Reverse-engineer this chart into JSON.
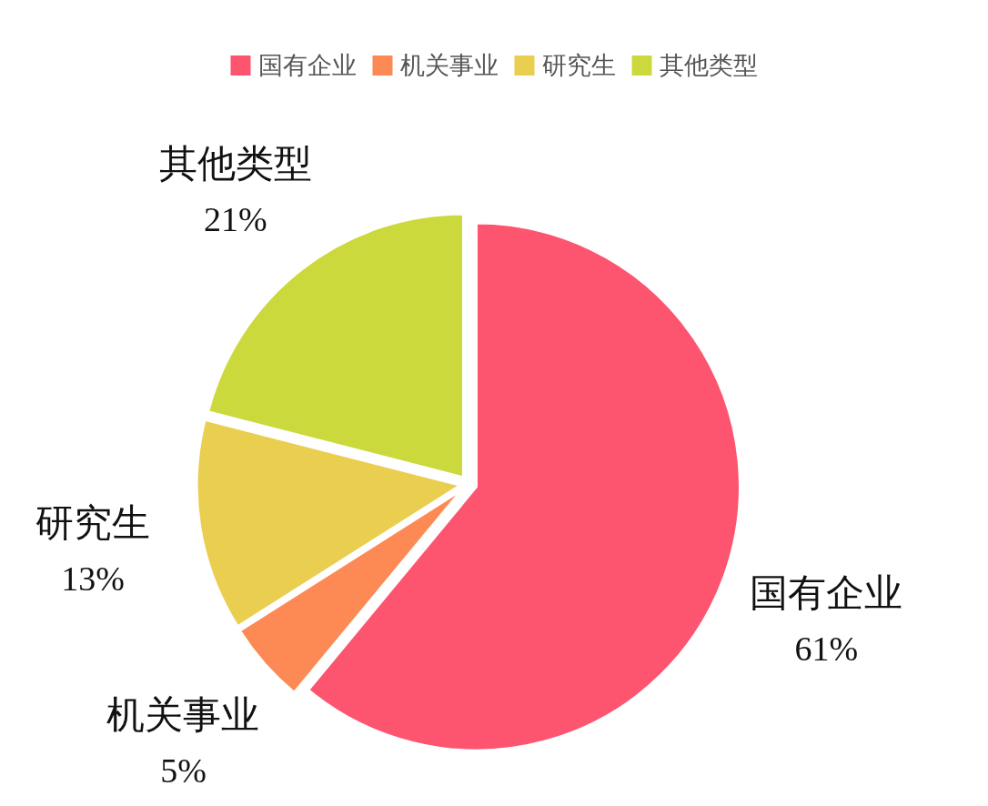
{
  "chart_data": {
    "type": "pie",
    "categories": [
      "国有企业",
      "机关事业",
      "研究生",
      "其他类型"
    ],
    "values": [
      61,
      5,
      13,
      21
    ],
    "colors": [
      "#fd5570",
      "#fd8a55",
      "#eace4f",
      "#cbd93d"
    ],
    "value_labels": [
      "61%",
      "5%",
      "13%",
      "21%"
    ],
    "legend": "top"
  }
}
